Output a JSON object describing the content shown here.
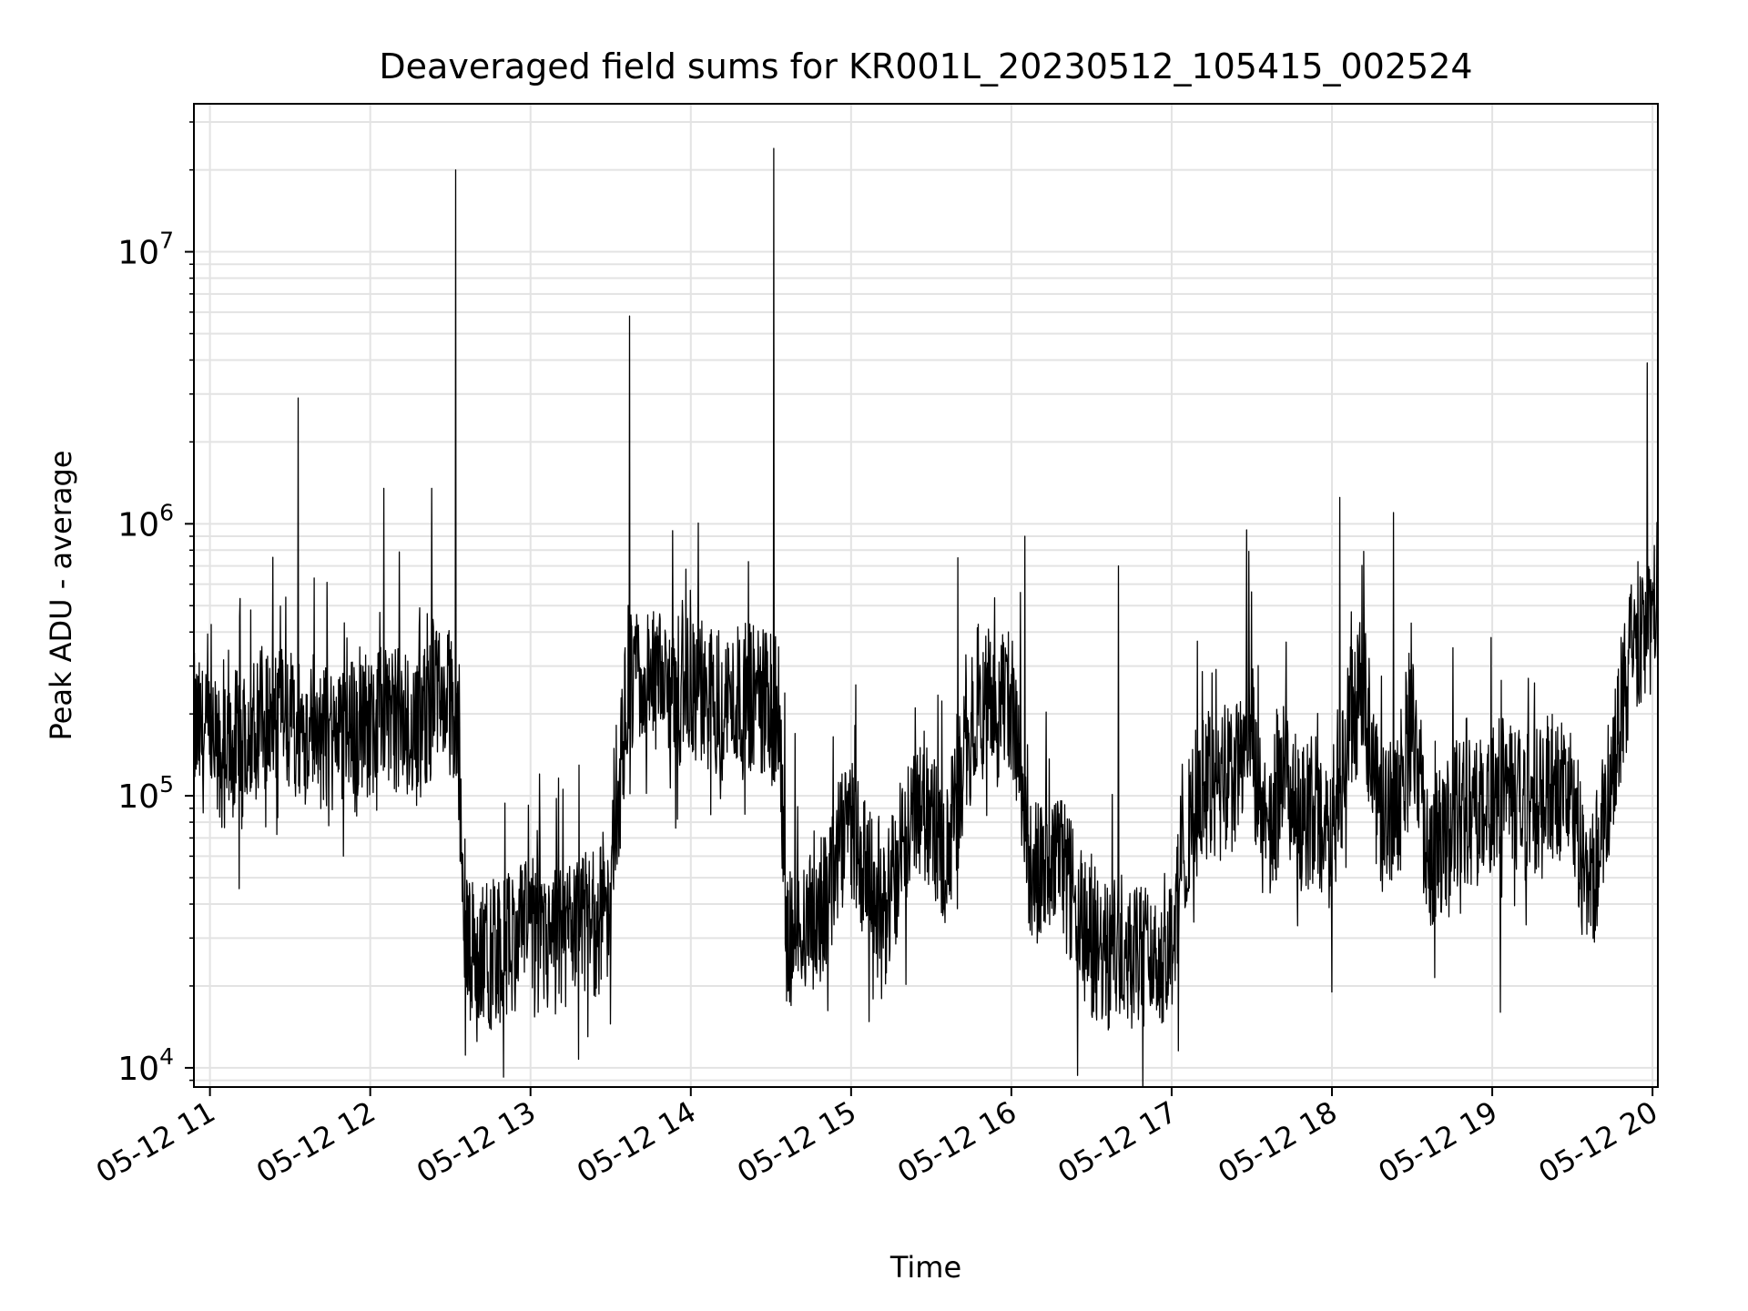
{
  "chart_data": {
    "type": "line",
    "title": "Deaveraged field sums for KR001L_20230512_105415_002524",
    "xlabel": "Time",
    "ylabel": "Peak ADU - average",
    "x_ticks": [
      "05-12 11",
      "05-12 12",
      "05-12 13",
      "05-12 14",
      "05-12 15",
      "05-12 16",
      "05-12 17",
      "05-12 18",
      "05-12 19",
      "05-12 20"
    ],
    "y_ticks": [
      {
        "base": "10",
        "exp": "4"
      },
      {
        "base": "10",
        "exp": "5"
      },
      {
        "base": "10",
        "exp": "6"
      },
      {
        "base": "10",
        "exp": "7"
      }
    ],
    "xlim": [
      "2023-05-12 10:54",
      "2023-05-12 20:02"
    ],
    "ylim": [
      8500,
      35000000
    ],
    "yscale": "log",
    "grid": true,
    "line_color": "#000000",
    "grid_color": "#e3e3e3",
    "series": [
      {
        "points": [
          [
            "2023-05-12 10:54",
            180000
          ],
          [
            "2023-05-12 11:00",
            150000
          ],
          [
            "2023-05-12 11:06",
            135000
          ],
          [
            "2023-05-12 11:12",
            170000
          ],
          [
            "2023-05-12 11:18",
            200000
          ],
          [
            "2023-05-12 11:24",
            190000
          ],
          [
            "2023-05-12 11:30",
            185000
          ],
          [
            "2023-05-12 11:36",
            175000
          ],
          [
            "2023-05-12 11:42",
            165000
          ],
          [
            "2023-05-12 11:48",
            160000
          ],
          [
            "2023-05-12 11:54",
            175000
          ],
          [
            "2023-05-12 12:00",
            180000
          ],
          [
            "2023-05-12 12:06",
            210000
          ],
          [
            "2023-05-12 12:12",
            180000
          ],
          [
            "2023-05-12 12:18",
            170000
          ],
          [
            "2023-05-12 12:24",
            230000
          ],
          [
            "2023-05-12 12:30",
            220000
          ],
          [
            "2023-05-12 12:33",
            150000
          ],
          [
            "2023-05-12 12:36",
            28000
          ],
          [
            "2023-05-12 12:42",
            25000
          ],
          [
            "2023-05-12 12:48",
            27000
          ],
          [
            "2023-05-12 12:54",
            30000
          ],
          [
            "2023-05-12 13:00",
            32000
          ],
          [
            "2023-05-12 13:06",
            28000
          ],
          [
            "2023-05-12 13:12",
            30000
          ],
          [
            "2023-05-12 13:18",
            32000
          ],
          [
            "2023-05-12 13:24",
            34000
          ],
          [
            "2023-05-12 13:30",
            38000
          ],
          [
            "2023-05-12 13:36",
            250000
          ],
          [
            "2023-05-12 13:42",
            260000
          ],
          [
            "2023-05-12 13:48",
            250000
          ],
          [
            "2023-05-12 13:54",
            245000
          ],
          [
            "2023-05-12 14:00",
            240000
          ],
          [
            "2023-05-12 14:06",
            230000
          ],
          [
            "2023-05-12 14:12",
            220000
          ],
          [
            "2023-05-12 14:18",
            230000
          ],
          [
            "2023-05-12 14:24",
            240000
          ],
          [
            "2023-05-12 14:30",
            210000
          ],
          [
            "2023-05-12 14:33",
            200000
          ],
          [
            "2023-05-12 14:36",
            30000
          ],
          [
            "2023-05-12 14:42",
            35000
          ],
          [
            "2023-05-12 14:48",
            33000
          ],
          [
            "2023-05-12 14:54",
            55000
          ],
          [
            "2023-05-12 15:00",
            80000
          ],
          [
            "2023-05-12 15:06",
            50000
          ],
          [
            "2023-05-12 15:12",
            35000
          ],
          [
            "2023-05-12 15:18",
            60000
          ],
          [
            "2023-05-12 15:24",
            100000
          ],
          [
            "2023-05-12 15:30",
            80000
          ],
          [
            "2023-05-12 15:36",
            60000
          ],
          [
            "2023-05-12 15:42",
            130000
          ],
          [
            "2023-05-12 15:48",
            250000
          ],
          [
            "2023-05-12 15:54",
            200000
          ],
          [
            "2023-05-12 16:00",
            220000
          ],
          [
            "2023-05-12 16:06",
            60000
          ],
          [
            "2023-05-12 16:12",
            50000
          ],
          [
            "2023-05-12 16:18",
            55000
          ],
          [
            "2023-05-12 16:24",
            40000
          ],
          [
            "2023-05-12 16:30",
            28000
          ],
          [
            "2023-05-12 16:36",
            25000
          ],
          [
            "2023-05-12 16:42",
            30000
          ],
          [
            "2023-05-12 16:48",
            27000
          ],
          [
            "2023-05-12 16:54",
            25000
          ],
          [
            "2023-05-12 17:00",
            30000
          ],
          [
            "2023-05-12 17:06",
            80000
          ],
          [
            "2023-05-12 17:12",
            110000
          ],
          [
            "2023-05-12 17:18",
            100000
          ],
          [
            "2023-05-12 17:24",
            120000
          ],
          [
            "2023-05-12 17:30",
            150000
          ],
          [
            "2023-05-12 17:36",
            60000
          ],
          [
            "2023-05-12 17:42",
            120000
          ],
          [
            "2023-05-12 17:48",
            80000
          ],
          [
            "2023-05-12 17:54",
            90000
          ],
          [
            "2023-05-12 18:00",
            60000
          ],
          [
            "2023-05-12 18:06",
            180000
          ],
          [
            "2023-05-12 18:12",
            250000
          ],
          [
            "2023-05-12 18:18",
            80000
          ],
          [
            "2023-05-12 18:24",
            90000
          ],
          [
            "2023-05-12 18:30",
            180000
          ],
          [
            "2023-05-12 18:36",
            60000
          ],
          [
            "2023-05-12 18:42",
            70000
          ],
          [
            "2023-05-12 18:48",
            90000
          ],
          [
            "2023-05-12 18:54",
            85000
          ],
          [
            "2023-05-12 19:00",
            100000
          ],
          [
            "2023-05-12 19:06",
            110000
          ],
          [
            "2023-05-12 19:12",
            90000
          ],
          [
            "2023-05-12 19:18",
            100000
          ],
          [
            "2023-05-12 19:24",
            110000
          ],
          [
            "2023-05-12 19:30",
            100000
          ],
          [
            "2023-05-12 19:36",
            40000
          ],
          [
            "2023-05-12 19:42",
            80000
          ],
          [
            "2023-05-12 19:48",
            200000
          ],
          [
            "2023-05-12 19:54",
            400000
          ],
          [
            "2023-05-12 20:00",
            450000
          ],
          [
            "2023-05-12 20:02",
            480000
          ]
        ]
      }
    ],
    "spikes": [
      [
        "2023-05-12 11:33",
        2900000
      ],
      [
        "2023-05-12 12:05",
        1350000
      ],
      [
        "2023-05-12 12:23",
        1350000
      ],
      [
        "2023-05-12 12:32",
        20000000
      ],
      [
        "2023-05-12 13:37",
        5800000
      ],
      [
        "2023-05-12 14:31",
        24000000
      ],
      [
        "2023-05-12 15:40",
        750000
      ],
      [
        "2023-05-12 16:05",
        900000
      ],
      [
        "2023-05-12 16:40",
        700000
      ],
      [
        "2023-05-12 17:28",
        950000
      ],
      [
        "2023-05-12 18:03",
        1250000
      ],
      [
        "2023-05-12 18:23",
        1100000
      ],
      [
        "2023-05-12 19:58",
        3900000
      ]
    ],
    "dips": [
      [
        "2023-05-12 11:50",
        60000
      ],
      [
        "2023-05-12 12:40",
        12500
      ],
      [
        "2023-05-12 13:30",
        14500
      ],
      [
        "2023-05-12 16:32",
        15000
      ],
      [
        "2023-05-12 16:45",
        14000
      ],
      [
        "2023-05-12 18:00",
        19000
      ],
      [
        "2023-05-12 19:03",
        16000
      ]
    ]
  }
}
